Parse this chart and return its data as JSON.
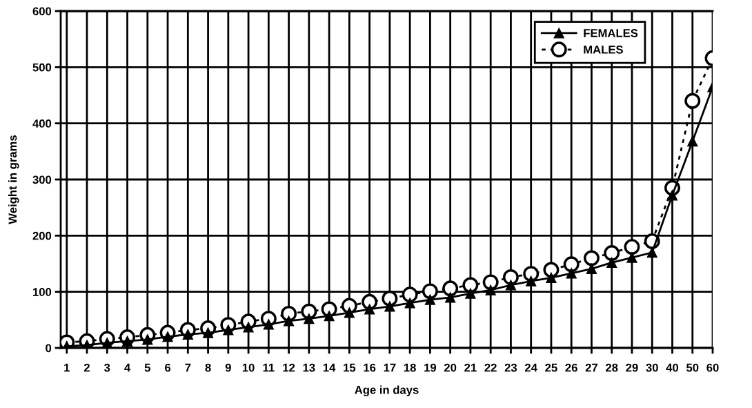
{
  "chart_data": {
    "type": "line",
    "xlabel": "Age in days",
    "ylabel": "Weight in grams",
    "categories": [
      "1",
      "2",
      "3",
      "4",
      "5",
      "6",
      "7",
      "8",
      "9",
      "10",
      "11",
      "12",
      "13",
      "14",
      "15",
      "16",
      "17",
      "18",
      "19",
      "20",
      "21",
      "22",
      "23",
      "24",
      "25",
      "26",
      "27",
      "28",
      "29",
      "30",
      "40",
      "50",
      "60"
    ],
    "series": [
      {
        "name": "FEMALES",
        "color": "#000000",
        "marker": "triangle",
        "line_style": "solid",
        "values": [
          3,
          5,
          9,
          12,
          15,
          20,
          24,
          27,
          32,
          37,
          42,
          48,
          52,
          57,
          63,
          69,
          74,
          80,
          86,
          90,
          97,
          103,
          112,
          119,
          125,
          133,
          141,
          152,
          161,
          170,
          272,
          368,
          465
        ]
      },
      {
        "name": "MALES",
        "color": "#000000",
        "marker": "circle",
        "line_style": "dotted",
        "values": [
          10,
          12,
          16,
          19,
          23,
          27,
          32,
          35,
          41,
          47,
          52,
          61,
          65,
          69,
          75,
          82,
          88,
          95,
          101,
          106,
          112,
          117,
          126,
          132,
          139,
          149,
          160,
          169,
          180,
          190,
          285,
          440,
          516
        ]
      }
    ],
    "ylim": [
      0,
      600
    ],
    "yticks": [
      0,
      100,
      200,
      300,
      400,
      500,
      600
    ],
    "grid": true,
    "legend": "top right"
  }
}
